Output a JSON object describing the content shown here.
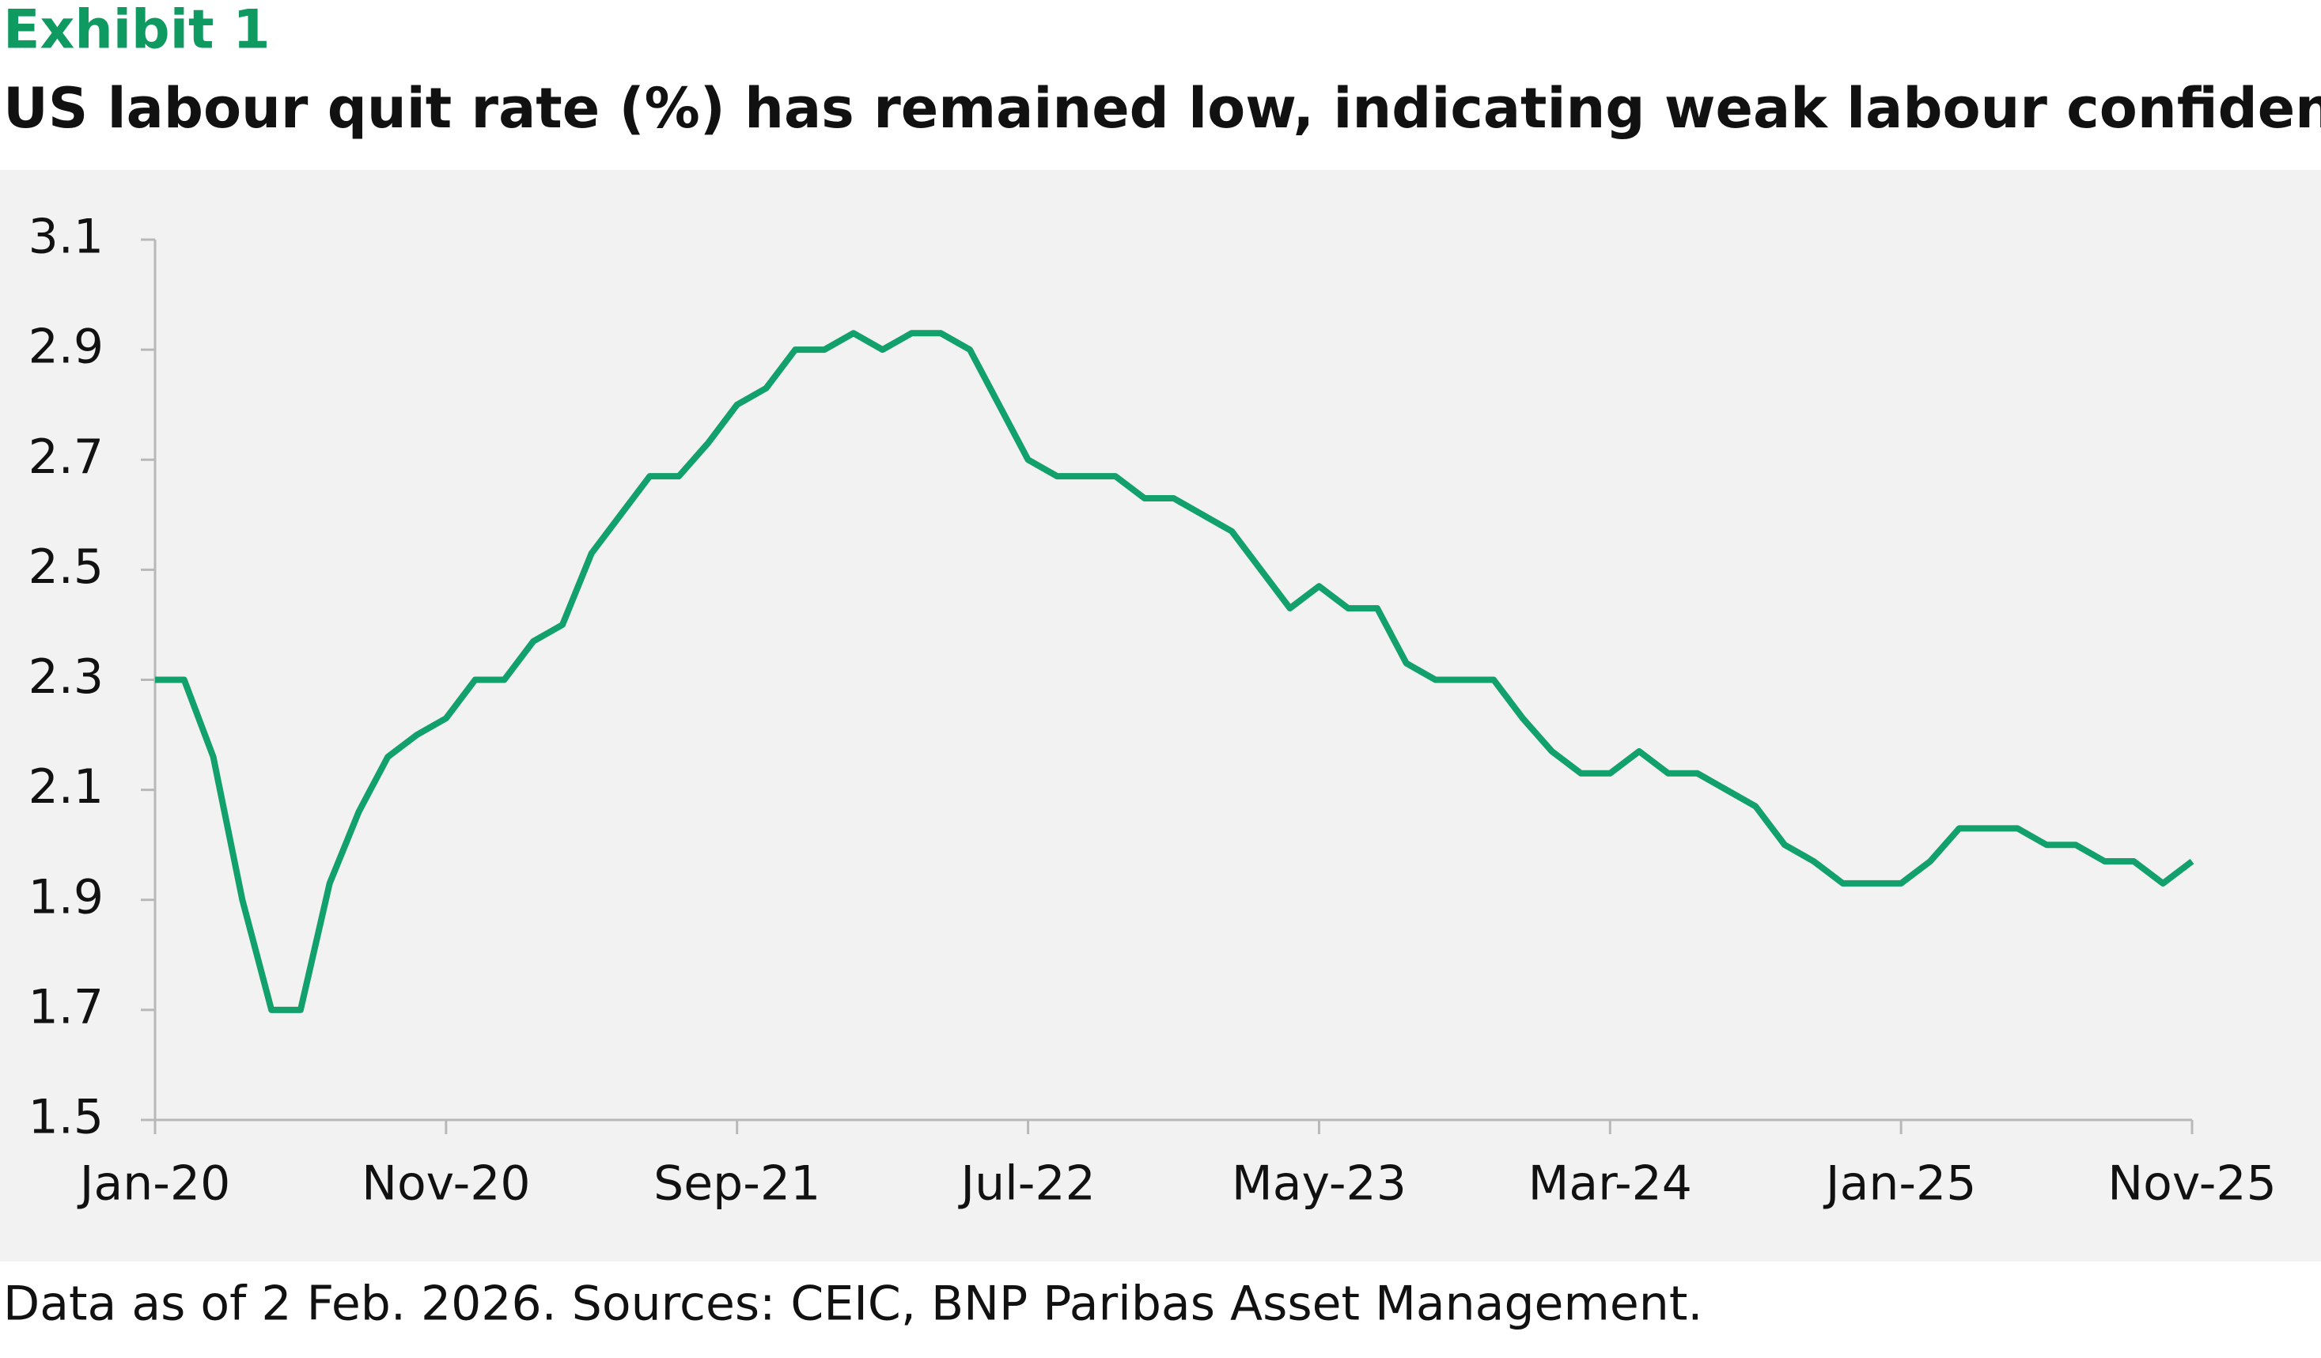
{
  "exhibit": "Exhibit 1",
  "chart_data": {
    "type": "line",
    "title": "US labour quit rate (%) has remained low, indicating weak labour confidence",
    "footnote": "Data as of 2 Feb. 2026. Sources: CEIC, BNP Paribas Asset Management.",
    "categories": [
      "Jan-20",
      null,
      null,
      null,
      null,
      null,
      null,
      null,
      null,
      null,
      "Nov-20",
      null,
      null,
      null,
      null,
      null,
      null,
      null,
      null,
      null,
      "Sep-21",
      null,
      null,
      null,
      null,
      null,
      null,
      null,
      null,
      null,
      "Jul-22",
      null,
      null,
      null,
      null,
      null,
      null,
      null,
      null,
      null,
      "May-23",
      null,
      null,
      null,
      null,
      null,
      null,
      null,
      null,
      null,
      "Mar-24",
      null,
      null,
      null,
      null,
      null,
      null,
      null,
      null,
      null,
      "Jan-25",
      null,
      null,
      null,
      null,
      null,
      null,
      null,
      null,
      null,
      "Nov-25"
    ],
    "series": [
      {
        "name": "US labour quit rate",
        "color": "#12a06c",
        "values": [
          2.3,
          2.3,
          2.16,
          1.9,
          1.7,
          1.7,
          1.93,
          2.06,
          2.16,
          2.2,
          2.23,
          2.3,
          2.3,
          2.37,
          2.4,
          2.53,
          2.6,
          2.67,
          2.67,
          2.73,
          2.8,
          2.83,
          2.9,
          2.9,
          2.93,
          2.9,
          2.93,
          2.93,
          2.9,
          2.8,
          2.7,
          2.67,
          2.67,
          2.67,
          2.63,
          2.63,
          2.6,
          2.57,
          2.5,
          2.43,
          2.47,
          2.43,
          2.43,
          2.33,
          2.3,
          2.3,
          2.3,
          2.23,
          2.17,
          2.13,
          2.13,
          2.17,
          2.13,
          2.13,
          2.1,
          2.07,
          2.0,
          1.97,
          1.93,
          1.93,
          1.93,
          1.97,
          2.03,
          2.03,
          2.03,
          2.0,
          2.0,
          1.97,
          1.97,
          1.93,
          1.97
        ]
      }
    ],
    "ylim": [
      1.5,
      3.1
    ],
    "yticks": [
      1.5,
      1.7,
      1.9,
      2.1,
      2.3,
      2.5,
      2.7,
      2.9,
      3.1
    ],
    "grid": false
  }
}
